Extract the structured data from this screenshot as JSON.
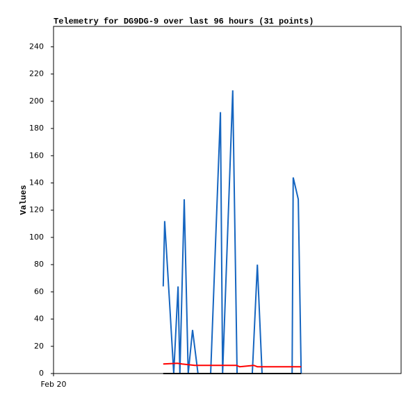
{
  "chart_data": {
    "type": "line",
    "title": "Telemetry for DG9DG-9 over last 96 hours (31 points)",
    "ylabel": "Values",
    "xlim": [
      0,
      96
    ],
    "xticks": [
      {
        "value": 0,
        "label": "Feb 20"
      }
    ],
    "ylim": [
      0,
      255
    ],
    "yticks": [
      0,
      20,
      40,
      60,
      80,
      100,
      120,
      140,
      160,
      180,
      200,
      220,
      240
    ],
    "grid": false,
    "series": [
      {
        "color": "#1565c0",
        "x": [
          30.3,
          30.7,
          32.1,
          33.2,
          34.4,
          34.9,
          36.1,
          37.2,
          38.4,
          39.9,
          43.4,
          46.1,
          46.7,
          49.5,
          50.7,
          54.9,
          56.3,
          57.6,
          65.9,
          66.2,
          67.6,
          68.4
        ],
        "values": [
          64,
          112,
          50,
          0,
          64,
          0,
          128,
          0,
          32,
          0,
          0,
          192,
          0,
          208,
          0,
          0,
          80,
          0,
          0,
          144,
          128,
          0
        ]
      },
      {
        "color": "#000000",
        "x": [
          30.3,
          68.4
        ],
        "values": [
          0,
          0
        ]
      },
      {
        "color": "#ff0000",
        "x": [
          30.3,
          34.2,
          35.5,
          39.0,
          42.8,
          50.5,
          51.4,
          53.4,
          55.3,
          56.3,
          58.2,
          68.4
        ],
        "values": [
          7,
          7.5,
          7,
          6,
          6,
          6,
          5,
          5.5,
          6,
          5,
          5,
          5
        ]
      }
    ]
  }
}
